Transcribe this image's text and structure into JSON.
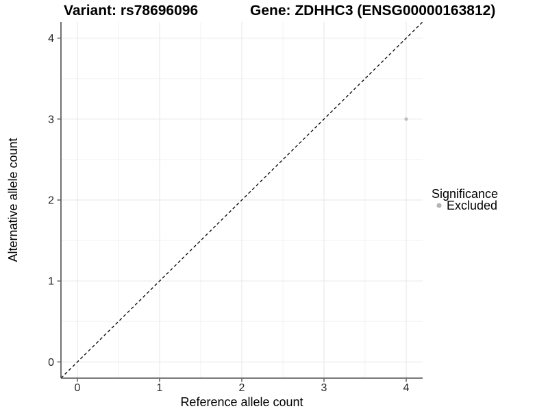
{
  "title": {
    "variant": "Variant: rs78696096",
    "gene": "Gene: ZDHHC3 (ENSG00000163812)"
  },
  "chart_data": {
    "type": "scatter",
    "title_left": "Variant: rs78696096",
    "title_right": "Gene: ZDHHC3 (ENSG00000163812)",
    "xlabel": "Reference allele count",
    "ylabel": "Alternative allele count",
    "xlim": [
      -0.2,
      4.2
    ],
    "ylim": [
      -0.2,
      4.2
    ],
    "xticks": [
      0,
      1,
      2,
      3,
      4
    ],
    "yticks": [
      0,
      1,
      2,
      3,
      4
    ],
    "minor_grid_step": 0.5,
    "grid": true,
    "points": [
      {
        "x": 4,
        "y": 3,
        "series": "Excluded"
      }
    ],
    "reference_line": {
      "type": "identity y=x",
      "style": "dashed",
      "color": "#000000"
    },
    "legend": {
      "title": "Significance",
      "position": "right",
      "items": [
        {
          "label": "Excluded",
          "color": "#b5b5b5"
        }
      ]
    }
  },
  "colors": {
    "background": "#ffffff",
    "major_grid": "#e6e6e6",
    "minor_grid": "#f2f2f2",
    "axis_line": "#4d4d4d",
    "tick_mark": "#333333",
    "tick_text": "#262626",
    "point": "#bdbdbd",
    "legend_dot": "#b5b5b5",
    "dashed_line": "#000000"
  }
}
